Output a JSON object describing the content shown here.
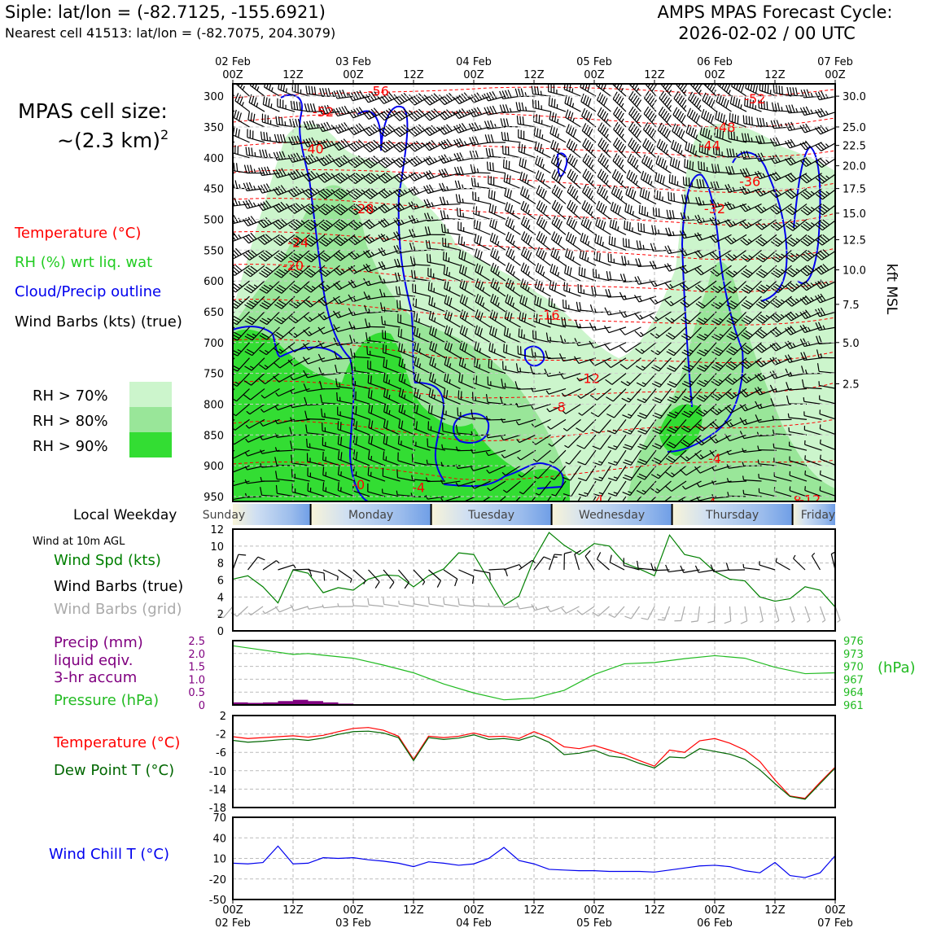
{
  "header": {
    "station_line": "Siple: lat/lon = (-82.7125, -155.6921)",
    "cell_line": "Nearest cell 41513: lat/lon = (-82.7075, 204.3079)",
    "cycle_title": "AMPS MPAS Forecast Cycle:",
    "cycle_time": "2026-02-02 / 00 UTC"
  },
  "cell_size": {
    "label": "MPAS cell size:",
    "value": "~(2.3 km)",
    "sup": "2"
  },
  "legend": {
    "temperature": "Temperature (°C)",
    "rh": "RH (%) wrt liq. wat",
    "cloud": "Cloud/Precip outline",
    "wind": "Wind Barbs (kts) (true)",
    "rh70": "RH > 70%",
    "rh80": "RH > 80%",
    "rh90": "RH > 90%"
  },
  "colors": {
    "temp": "#ff0000",
    "rh_text": "#22cc22",
    "cloud": "#0000ee",
    "rh70": "#ccf5cc",
    "rh80": "#99e699",
    "rh90": "#33dd33",
    "precip_label": "#800080",
    "wind_spd": "#008000",
    "pressure": "#22bb22",
    "dewpoint": "#006600",
    "windchill": "#0000ee",
    "grid_barb": "#aaaaaa"
  },
  "time_axis": {
    "top_dates": [
      "02 Feb",
      "",
      "03 Feb",
      "",
      "04 Feb",
      "",
      "05 Feb",
      "",
      "06 Feb",
      "",
      "07 Feb"
    ],
    "top_hours": [
      "00Z",
      "12Z",
      "00Z",
      "12Z",
      "00Z",
      "12Z",
      "00Z",
      "12Z",
      "00Z",
      "12Z",
      "00Z"
    ],
    "bottom_hours": [
      "00Z",
      "12Z",
      "00Z",
      "12Z",
      "00Z",
      "12Z",
      "00Z",
      "12Z",
      "00Z",
      "12Z",
      "00Z"
    ],
    "bottom_dates": [
      "02 Feb",
      "",
      "03 Feb",
      "",
      "04 Feb",
      "",
      "05 Feb",
      "",
      "06 Feb",
      "",
      "07 Feb"
    ]
  },
  "weekday": {
    "label": "Local Weekday",
    "days": [
      "Sunday",
      "Monday",
      "Tuesday",
      "Wednesday",
      "Thursday",
      "Friday"
    ]
  },
  "panel_labels": {
    "wind10m": "Wind at 10m AGL",
    "wind_spd": "Wind Spd (kts)",
    "wind_barbs_true": "Wind Barbs (true)",
    "wind_barbs_grid": "Wind Barbs (grid)",
    "precip1": "Precip (mm)",
    "precip2": "liquid eqiv.",
    "precip3": "3-hr accum",
    "pressure": "Pressure (hPa)",
    "pressure_unit": "(hPa)",
    "temperature": "Temperature (°C)",
    "dewpoint": "Dew Point T (°C)",
    "windchill": "Wind Chill T (°C)",
    "kft_label": "kft MSL"
  },
  "chart_data": [
    {
      "type": "heatmap",
      "name": "profile",
      "pressure_ticks": [
        300,
        350,
        400,
        450,
        500,
        550,
        600,
        650,
        700,
        750,
        800,
        850,
        900,
        950
      ],
      "pressure_range": [
        280,
        958
      ],
      "kft_ticks": [
        "30.0",
        "25.0",
        "22.5",
        "20.0",
        "17.5",
        "15.0",
        "12.5",
        "10.0",
        "7.5",
        "5.0",
        "2.5"
      ],
      "kft_ticks_pressure": [
        300,
        350,
        380,
        413,
        450,
        490,
        533,
        582,
        638,
        700,
        767
      ],
      "time_range_h": [
        0,
        120
      ],
      "temp_contour_labels": [
        {
          "t": 29,
          "p": 291,
          "label": "-56"
        },
        {
          "t": 18,
          "p": 325,
          "label": "-52"
        },
        {
          "t": 104,
          "p": 304,
          "label": "-52"
        },
        {
          "t": 98,
          "p": 350,
          "label": "-48"
        },
        {
          "t": 95,
          "p": 380,
          "label": "-44"
        },
        {
          "t": 16,
          "p": 385,
          "label": "-40"
        },
        {
          "t": 103,
          "p": 438,
          "label": "-36"
        },
        {
          "t": 96,
          "p": 482,
          "label": "-32"
        },
        {
          "t": 26,
          "p": 482,
          "label": "-28"
        },
        {
          "t": 13,
          "p": 537,
          "label": "-24"
        },
        {
          "t": 12,
          "p": 575,
          "label": "-20"
        },
        {
          "t": 63,
          "p": 655,
          "label": "-16"
        },
        {
          "t": 71,
          "p": 758,
          "label": "-12"
        },
        {
          "t": 65,
          "p": 804,
          "label": "-8"
        },
        {
          "t": 96,
          "p": 888,
          "label": "-4"
        },
        {
          "t": 25,
          "p": 930,
          "label": "-0"
        },
        {
          "t": 37,
          "p": 935,
          "label": "-4"
        },
        {
          "t": 73,
          "p": 955,
          "label": "4"
        },
        {
          "t": 95,
          "p": 960,
          "label": "-4"
        },
        {
          "t": 112,
          "p": 956,
          "label": "-8"
        },
        {
          "t": 115,
          "p": 955,
          "label": "-12"
        }
      ]
    },
    {
      "type": "line",
      "name": "wind_speed_10m",
      "x_h": [
        0,
        3,
        6,
        9,
        12,
        15,
        18,
        21,
        24,
        27,
        30,
        33,
        36,
        39,
        42,
        45,
        48,
        51,
        54,
        57,
        60,
        63,
        66,
        69,
        72,
        75,
        78,
        81,
        84,
        87,
        90,
        93,
        96,
        99,
        102,
        105,
        108,
        111,
        114,
        117,
        120
      ],
      "values": [
        6.1,
        6.5,
        5.2,
        3.3,
        7.2,
        6.8,
        4.5,
        5.1,
        4.8,
        6.1,
        6.6,
        6.5,
        5.2,
        6.5,
        7.3,
        9.2,
        9.0,
        6.0,
        3.0,
        4.1,
        8.5,
        11.6,
        10.1,
        9.0,
        10.3,
        10.0,
        8.0,
        7.3,
        6.5,
        11.3,
        9.0,
        8.6,
        7.0,
        6.1,
        5.9,
        4.0,
        3.5,
        3.8,
        5.2,
        4.8,
        2.8
      ],
      "ylim": [
        0,
        12
      ],
      "yticks": [
        0,
        2,
        4,
        6,
        8,
        10,
        12
      ],
      "ylabel": "Wind Spd (kts)"
    },
    {
      "type": "bar",
      "name": "precip_3hr",
      "x_h": [
        0,
        3,
        6,
        9,
        12,
        15,
        18,
        21,
        24
      ],
      "values": [
        0.1,
        0.08,
        0.1,
        0.15,
        0.2,
        0.15,
        0.1,
        0.05,
        0
      ],
      "ylim": [
        0,
        2.5
      ],
      "yticks": [
        "0",
        "0.5",
        "1.0",
        "1.5",
        "2.0",
        "2.5"
      ]
    },
    {
      "type": "line",
      "name": "pressure",
      "x_h": [
        0,
        6,
        12,
        15,
        18,
        24,
        30,
        36,
        42,
        48,
        54,
        60,
        66,
        72,
        78,
        84,
        90,
        96,
        102,
        108,
        114,
        120
      ],
      "values": [
        974.8,
        973.8,
        972.8,
        973.0,
        972.6,
        971.9,
        970.3,
        968.5,
        965.9,
        963.8,
        962.2,
        962.6,
        964.4,
        968.1,
        970.6,
        970.9,
        971.8,
        972.5,
        971.9,
        969.8,
        968.3,
        968.5
      ],
      "ylim": [
        961,
        976
      ],
      "yticks": [
        "961",
        "964",
        "967",
        "970",
        "973",
        "976"
      ]
    },
    {
      "type": "line",
      "name": "temperature_dewpoint",
      "x_h": [
        0,
        3,
        6,
        9,
        12,
        15,
        18,
        21,
        24,
        27,
        30,
        33,
        36,
        39,
        42,
        45,
        48,
        51,
        54,
        57,
        60,
        63,
        66,
        69,
        72,
        75,
        78,
        81,
        84,
        87,
        90,
        93,
        96,
        99,
        102,
        105,
        108,
        111,
        114,
        117,
        120
      ],
      "series": [
        {
          "name": "Temperature (°C)",
          "values": [
            -2.6,
            -3.0,
            -2.8,
            -2.6,
            -2.4,
            -2.7,
            -2.3,
            -1.5,
            -0.8,
            -0.6,
            -1.2,
            -2.5,
            -7.5,
            -2.5,
            -2.8,
            -2.5,
            -1.8,
            -2.6,
            -2.5,
            -3.0,
            -1.5,
            -2.8,
            -4.8,
            -5.2,
            -4.5,
            -5.5,
            -6.5,
            -7.8,
            -9.0,
            -5.5,
            -6.0,
            -3.5,
            -3.0,
            -4.0,
            -5.5,
            -8.0,
            -12.0,
            -15.5,
            -16.0,
            -12.5,
            -9.2
          ]
        },
        {
          "name": "Dew Point T (°C)",
          "values": [
            -3.4,
            -3.8,
            -3.6,
            -3.3,
            -3.1,
            -3.4,
            -2.9,
            -2.1,
            -1.5,
            -1.4,
            -1.8,
            -2.8,
            -7.8,
            -2.8,
            -3.2,
            -2.9,
            -2.2,
            -3.2,
            -3.0,
            -3.4,
            -2.4,
            -3.8,
            -6.5,
            -6.2,
            -5.5,
            -6.8,
            -7.2,
            -8.4,
            -9.4,
            -7.0,
            -7.2,
            -5.2,
            -5.8,
            -6.4,
            -7.5,
            -9.8,
            -12.8,
            -15.6,
            -16.2,
            -12.8,
            -9.4
          ]
        }
      ],
      "ylim": [
        -18,
        2
      ],
      "yticks": [
        "2",
        "-2",
        "-6",
        "-10",
        "-14",
        "-18"
      ]
    },
    {
      "type": "line",
      "name": "wind_chill",
      "x_h": [
        0,
        3,
        6,
        9,
        12,
        15,
        18,
        21,
        24,
        27,
        30,
        33,
        36,
        39,
        42,
        45,
        48,
        51,
        54,
        57,
        60,
        63,
        66,
        69,
        72,
        75,
        78,
        81,
        84,
        87,
        90,
        93,
        96,
        99,
        102,
        105,
        108,
        111,
        114,
        117,
        120
      ],
      "values": [
        3,
        2,
        4,
        28,
        2,
        3,
        11,
        10,
        11,
        8,
        6,
        3,
        -2,
        5,
        3,
        0,
        2,
        10,
        26,
        7,
        2,
        -6,
        -7,
        -8,
        -8,
        -9,
        -9,
        -9,
        -10,
        -7,
        -4,
        -1,
        0,
        -2,
        -8,
        -11,
        4,
        -15,
        -18,
        -11,
        14
      ],
      "ylim": [
        -50,
        70
      ],
      "yticks": [
        "70",
        "40",
        "10",
        "-20",
        "-50"
      ]
    }
  ]
}
